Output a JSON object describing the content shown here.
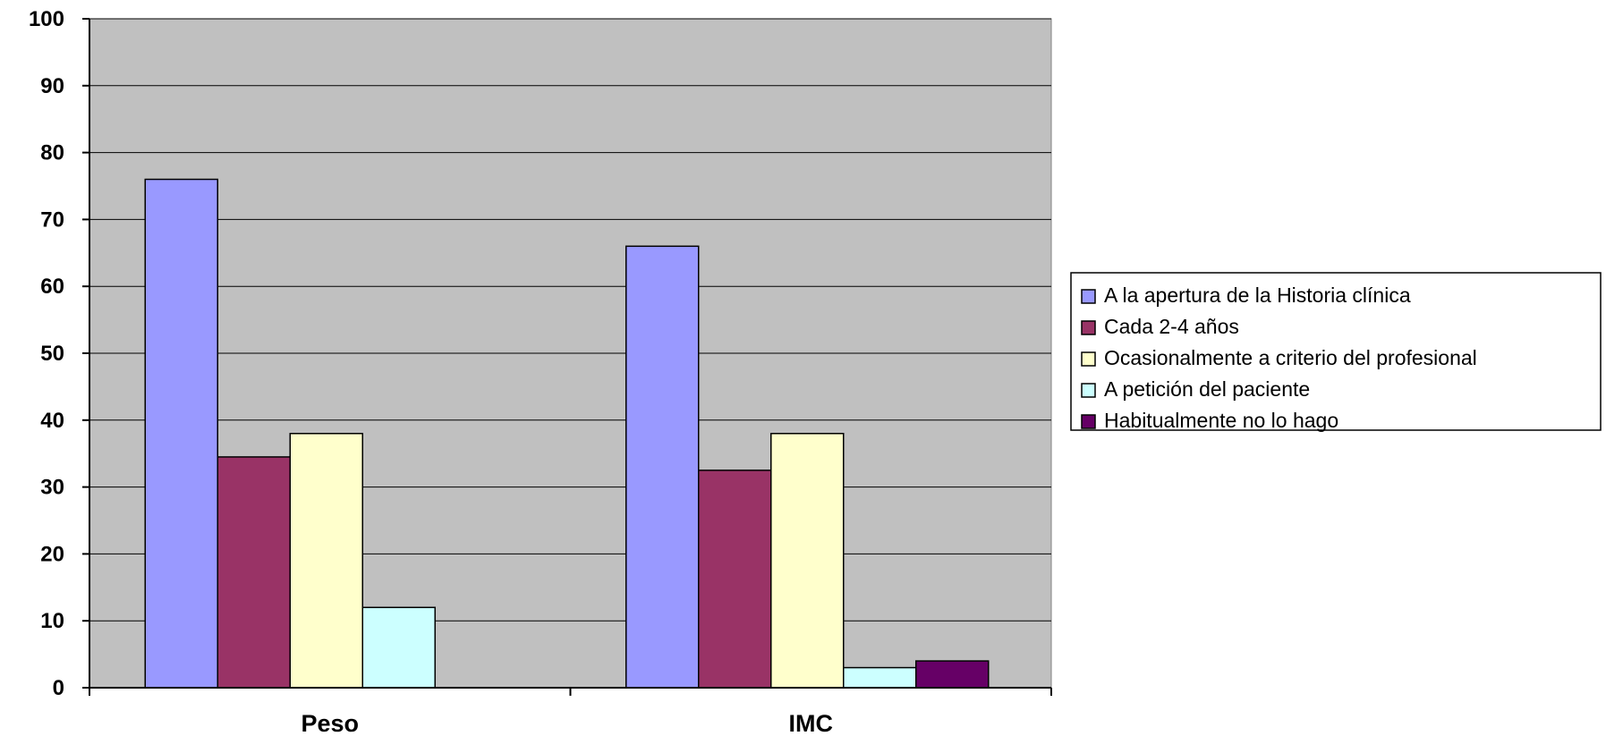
{
  "chart_data": {
    "type": "bar",
    "categories": [
      "Peso",
      "IMC"
    ],
    "series": [
      {
        "name": "A la apertura de la Historia clínica",
        "color": "#9999ff",
        "values": [
          76,
          66
        ]
      },
      {
        "name": "Cada 2-4 años",
        "color": "#993366",
        "values": [
          34.5,
          32.5
        ]
      },
      {
        "name": "Ocasionalmente a criterio del profesional",
        "color": "#ffffcc",
        "values": [
          38,
          38
        ]
      },
      {
        "name": "A petición del paciente",
        "color": "#ccffff",
        "values": [
          12,
          3
        ]
      },
      {
        "name": "Habitualmente no lo hago",
        "color": "#660066",
        "values": [
          0,
          4
        ]
      }
    ],
    "ylim": [
      0,
      100
    ],
    "yticks": [
      "0",
      "10",
      "20",
      "30",
      "40",
      "50",
      "60",
      "70",
      "80",
      "90",
      "100"
    ],
    "grid": true,
    "legend_position": "right",
    "plot_background": "#c0c0c0"
  }
}
